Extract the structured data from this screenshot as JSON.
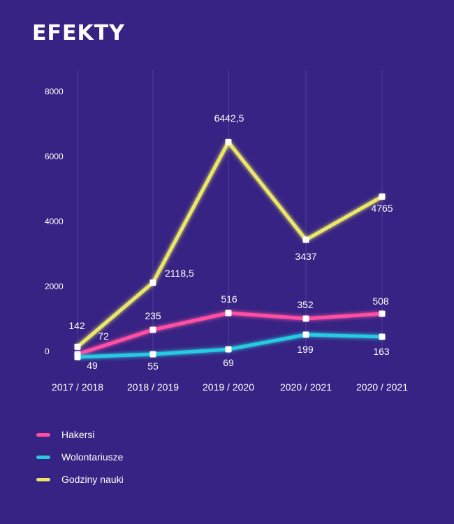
{
  "title": "EFEKTY",
  "chart_data": {
    "type": "line",
    "categories": [
      "2017 / 2018",
      "2018 / 2019",
      "2019 / 2020",
      "2020 / 2021",
      "2020 / 2021"
    ],
    "ylim": [
      0,
      8000
    ],
    "yticks": [
      "0",
      "2000",
      "4000",
      "6000",
      "8000"
    ],
    "grid": "vertical",
    "legend_position": "bottom-left",
    "series": [
      {
        "name": "Godziny nauki",
        "color": "#e9e667",
        "values": [
          142,
          2118.5,
          6442.5,
          3437,
          4765
        ],
        "labels": [
          "142",
          "2118,5",
          "6442,5",
          "3437",
          "4765"
        ]
      },
      {
        "name": "Hakersi",
        "color": "#ff4fa2",
        "values": [
          72,
          235,
          516,
          352,
          508
        ],
        "labels": [
          "72",
          "235",
          "516",
          "352",
          "508"
        ]
      },
      {
        "name": "Wolontariusze",
        "color": "#26cbe0",
        "values": [
          49,
          55,
          69,
          199,
          163
        ],
        "labels": [
          "49",
          "55",
          "69",
          "199",
          "163"
        ]
      }
    ]
  },
  "legend": [
    {
      "label": "Hakersi",
      "color": "#ff4fa2"
    },
    {
      "label": "Wolontariusze",
      "color": "#26cbe0"
    },
    {
      "label": "Godziny nauki",
      "color": "#e9e667"
    }
  ]
}
